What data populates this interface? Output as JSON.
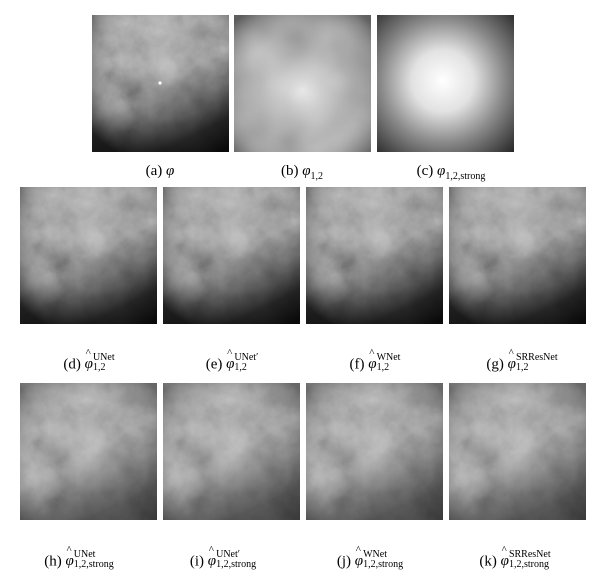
{
  "captions": {
    "a": {
      "label": "(a)",
      "symbol": "φ",
      "sub": "",
      "sup": ""
    },
    "b": {
      "label": "(b)",
      "symbol": "φ",
      "sub": "1,2",
      "sup": ""
    },
    "c": {
      "label": "(c)",
      "symbol": "φ",
      "sub": "1,2,strong",
      "sup": ""
    },
    "d": {
      "label": "(d)",
      "symbol": "φ",
      "sub": "1,2",
      "sup": "UNet"
    },
    "e": {
      "label": "(e)",
      "symbol": "φ",
      "sub": "1,2",
      "sup": "UNet′"
    },
    "f": {
      "label": "(f)",
      "symbol": "φ",
      "sub": "1,2",
      "sup": "WNet"
    },
    "g": {
      "label": "(g)",
      "symbol": "φ",
      "sub": "1,2",
      "sup": "SRResNet"
    },
    "h": {
      "label": "(h)",
      "symbol": "φ",
      "sub": "1,2,strong",
      "sup": "UNet"
    },
    "i": {
      "label": "(i)",
      "symbol": "φ",
      "sub": "1,2,strong",
      "sup": "UNet′"
    },
    "j": {
      "label": "(j)",
      "symbol": "φ",
      "sub": "1,2,strong",
      "sup": "WNet"
    },
    "k": {
      "label": "(k)",
      "symbol": "φ",
      "sub": "1,2,strong",
      "sup": "SRResNet"
    }
  }
}
